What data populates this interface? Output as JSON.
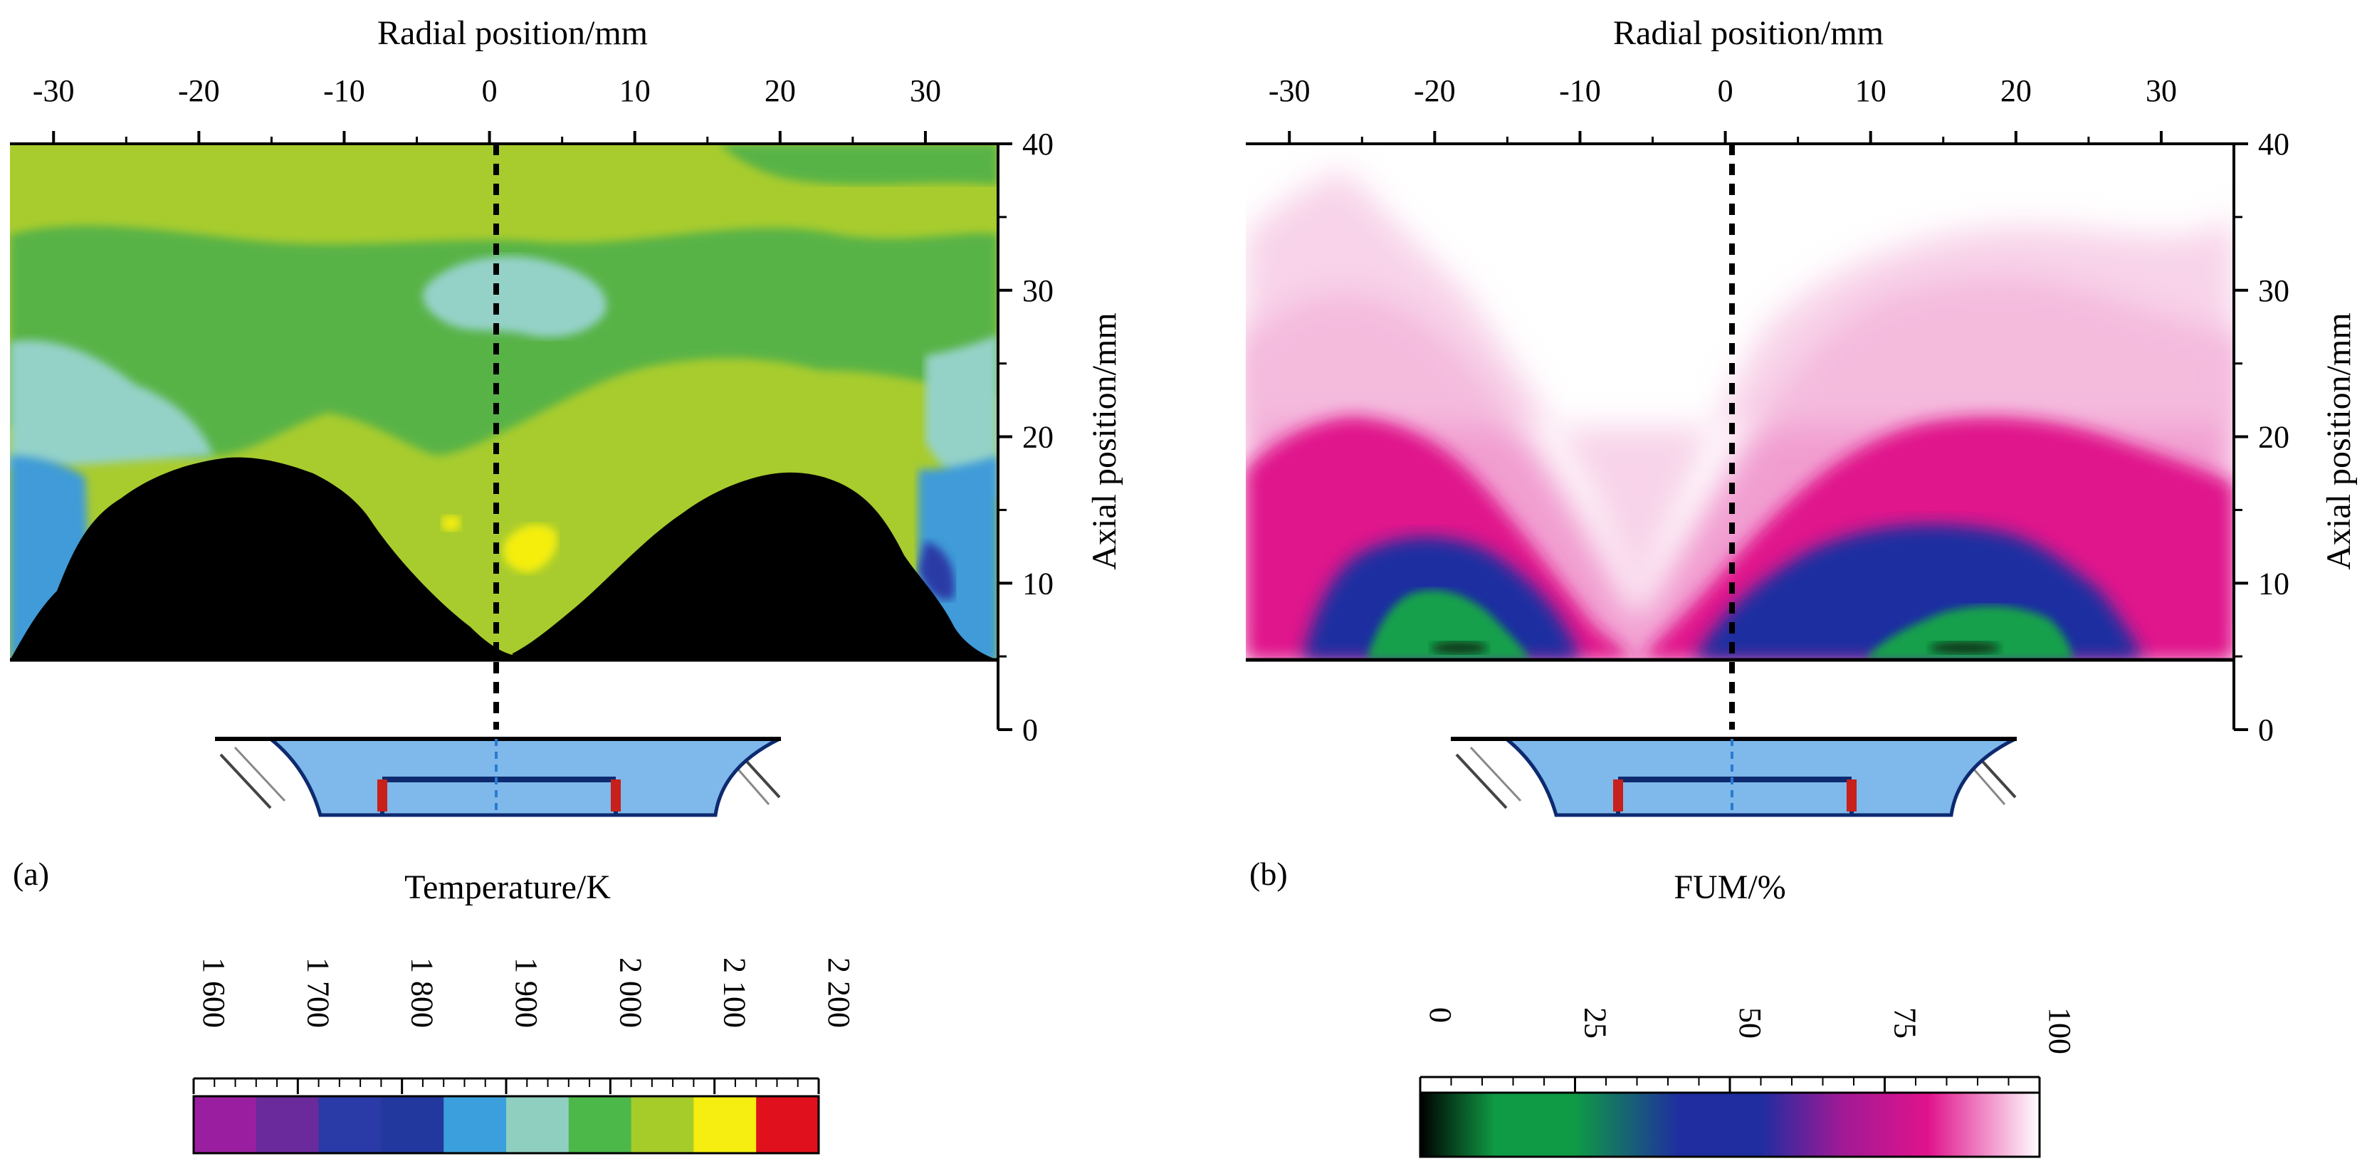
{
  "chart_data": [
    {
      "type": "heatmap",
      "panel_label": "(a)",
      "xlabel": "Radial position/mm",
      "ylabel": "Axial position/mm",
      "x_ticks": [
        "-30",
        "-20",
        "-10",
        "0",
        "10",
        "20",
        "30"
      ],
      "x_tick_values": [
        -30,
        -20,
        -10,
        0,
        10,
        20,
        30
      ],
      "y_ticks": [
        "0",
        "10",
        "20",
        "30",
        "40"
      ],
      "y_tick_values": [
        0,
        10,
        20,
        30,
        40
      ],
      "xlim": [
        -33,
        35
      ],
      "ylim": [
        0,
        40
      ],
      "data_y_min": 5,
      "centerline_x": 0,
      "colorbar": {
        "title": "Temperature/K",
        "labels": [
          "1 600",
          "1 700",
          "1 800",
          "1 900",
          "2 000",
          "2 100",
          "2 200"
        ],
        "values": [
          1600,
          1700,
          1800,
          1900,
          2000,
          2100,
          2200
        ],
        "colors": [
          "#9a1fa0",
          "#6a2a9c",
          "#2a3aa6",
          "#23389e",
          "#3a9fdc",
          "#8fcfc0",
          "#4cb84a",
          "#a6cc2a",
          "#f5ee10",
          "#e0101c"
        ]
      },
      "regions": [
        {
          "level": "2 000",
          "color": "#a8cc2e",
          "description": "upper band and central V region"
        },
        {
          "level": "1 950",
          "color": "#58b346",
          "description": "mid band"
        },
        {
          "level": "1 850",
          "color": "#94d2c8",
          "description": "cool pockets near centre top"
        },
        {
          "level": "1 800",
          "color": "#3f9bd8",
          "description": "outer edges"
        },
        {
          "level": "2 100",
          "color": "#f5ee10",
          "description": "hot spot near x=2, y=14"
        },
        {
          "level": "masked",
          "color": "#000000",
          "description": "recirculation lobes"
        }
      ]
    },
    {
      "type": "heatmap",
      "panel_label": "(b)",
      "xlabel": "Radial position/mm",
      "ylabel": "Axial position/mm",
      "x_ticks": [
        "-30",
        "-20",
        "-10",
        "0",
        "10",
        "20",
        "30"
      ],
      "x_tick_values": [
        -30,
        -20,
        -10,
        0,
        10,
        20,
        30
      ],
      "y_ticks": [
        "0",
        "10",
        "20",
        "30",
        "40"
      ],
      "y_tick_values": [
        0,
        10,
        20,
        30,
        40
      ],
      "xlim": [
        -33,
        35
      ],
      "ylim": [
        0,
        40
      ],
      "data_y_min": 5,
      "centerline_x": 0,
      "colorbar": {
        "title": "FUM/%",
        "labels": [
          "0",
          "25",
          "50",
          "75",
          "100"
        ],
        "values": [
          0,
          25,
          50,
          75,
          100
        ],
        "colors": [
          "#000000",
          "#0f9a45",
          "#1f2da0",
          "#e0138c",
          "#ffffff"
        ]
      },
      "regions": [
        {
          "level": "25",
          "color": "#16a04c",
          "description": "cores at x=-18 and x=+18 near y=6"
        },
        {
          "level": "50",
          "color": "#1f2da0",
          "description": "surrounding cores"
        },
        {
          "level": "75",
          "color": "#e0138c",
          "description": "V-shaped band up to y=20"
        },
        {
          "level": "100",
          "color": "#ffffff",
          "description": "upper region"
        }
      ]
    }
  ]
}
